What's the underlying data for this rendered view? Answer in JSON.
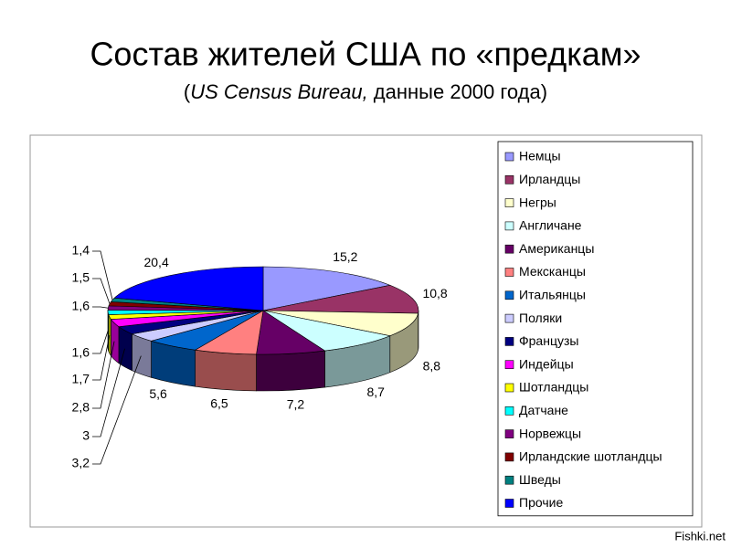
{
  "chart_data": {
    "type": "pie3d",
    "title": "Состав жителей США по «предкам»",
    "subtitle": [
      "(",
      "US Census Bureau,",
      " данные 2000 года)"
    ],
    "watermark": "Fishki.net",
    "categories": [
      "Немцы",
      "Ирландцы",
      "Негры",
      "Англичане",
      "Американцы",
      "Мексканцы",
      "Итальянцы",
      "Поляки",
      "Французы",
      "Индейцы",
      "Шотландцы",
      "Датчане",
      "Норвежцы",
      "Ирландские шотландцы",
      "Шведы",
      "Прочие"
    ],
    "values": [
      15.2,
      10.8,
      8.8,
      8.7,
      7.2,
      6.5,
      5.6,
      3.2,
      3,
      2.8,
      1.7,
      1.6,
      1.6,
      1.5,
      1.4,
      20.4
    ],
    "value_labels": [
      "15,2",
      "10,8",
      "8,8",
      "8,7",
      "7,2",
      "6,5",
      "5,6",
      "3,2",
      "3",
      "2,8",
      "1,7",
      "1,6",
      "1,6",
      "1,5",
      "1,4",
      "20,4"
    ],
    "colors": [
      "#9999ff",
      "#993366",
      "#ffffcc",
      "#ccffff",
      "#660066",
      "#ff8080",
      "#0066cc",
      "#ccccff",
      "#000080",
      "#ff00ff",
      "#ffff00",
      "#00ffff",
      "#800080",
      "#800000",
      "#008080",
      "#0000ff"
    ],
    "legend": "right"
  }
}
